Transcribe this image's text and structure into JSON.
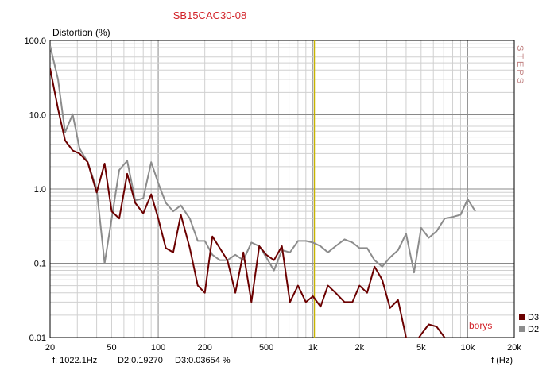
{
  "chart_data": {
    "type": "line",
    "title": "SB15CAC30-08",
    "ylabel": "Distortion (%)",
    "xlabel": "f (Hz)",
    "x_scale": "log",
    "y_scale": "log",
    "xlim": [
      20,
      20000
    ],
    "ylim": [
      0.01,
      100
    ],
    "grid": true,
    "legend_position": "bottom-right",
    "watermark": "borys",
    "side_label": "STEPS",
    "cursor": {
      "x": 1022.1
    },
    "readout": {
      "freq": "f: 1022.1Hz",
      "d2": "D2:0.19270",
      "d3": "D3:0.03654 %"
    },
    "x_ticks": [
      {
        "value": 20,
        "label": "20"
      },
      {
        "value": 50,
        "label": "50"
      },
      {
        "value": 100,
        "label": "100"
      },
      {
        "value": 200,
        "label": "200"
      },
      {
        "value": 500,
        "label": "500"
      },
      {
        "value": 1000,
        "label": "1k"
      },
      {
        "value": 2000,
        "label": "2k"
      },
      {
        "value": 5000,
        "label": "5k"
      },
      {
        "value": 10000,
        "label": "10k"
      },
      {
        "value": 20000,
        "label": "20k"
      }
    ],
    "y_ticks": [
      {
        "value": 100,
        "label": "100.0"
      },
      {
        "value": 10,
        "label": "10.0"
      },
      {
        "value": 1,
        "label": "1.0"
      },
      {
        "value": 0.1,
        "label": "0.1"
      },
      {
        "value": 0.01,
        "label": "0.01"
      }
    ],
    "series": [
      {
        "name": "D2",
        "color": "#8c8c8c",
        "x": [
          20,
          22.5,
          25,
          28,
          31,
          35,
          40,
          45,
          50,
          56,
          63,
          71,
          80,
          90,
          100,
          112,
          125,
          140,
          160,
          180,
          200,
          224,
          250,
          280,
          315,
          355,
          400,
          450,
          500,
          560,
          630,
          710,
          800,
          900,
          1000,
          1120,
          1250,
          1400,
          1600,
          1800,
          2000,
          2240,
          2500,
          2800,
          3150,
          3550,
          4000,
          4500,
          5000,
          5600,
          6300,
          7100,
          8000,
          9000,
          10000,
          11200
        ],
        "y": [
          85,
          30,
          5.8,
          10.2,
          3.5,
          2.3,
          1.0,
          0.1,
          0.4,
          1.8,
          2.4,
          0.7,
          0.75,
          2.3,
          1.2,
          0.65,
          0.5,
          0.6,
          0.4,
          0.2,
          0.2,
          0.13,
          0.11,
          0.11,
          0.13,
          0.11,
          0.19,
          0.17,
          0.12,
          0.08,
          0.15,
          0.14,
          0.2,
          0.2,
          0.19,
          0.17,
          0.14,
          0.17,
          0.21,
          0.19,
          0.16,
          0.16,
          0.11,
          0.09,
          0.12,
          0.15,
          0.25,
          0.075,
          0.3,
          0.22,
          0.27,
          0.4,
          0.42,
          0.45,
          0.73,
          0.5
        ]
      },
      {
        "name": "D3",
        "color": "#6b0000",
        "x": [
          20,
          22.5,
          25,
          28,
          31,
          35,
          40,
          45,
          50,
          56,
          63,
          71,
          80,
          90,
          100,
          112,
          125,
          140,
          160,
          180,
          200,
          224,
          250,
          280,
          315,
          355,
          400,
          450,
          500,
          560,
          630,
          710,
          800,
          900,
          1000,
          1120,
          1250,
          1400,
          1600,
          1800,
          2000,
          2240,
          2500,
          2800,
          3150,
          3550,
          4000,
          4500,
          5000,
          5600,
          6300,
          7100
        ],
        "y": [
          42,
          12,
          4.5,
          3.3,
          3.0,
          2.3,
          0.9,
          2.2,
          0.5,
          0.4,
          1.6,
          0.65,
          0.47,
          0.85,
          0.4,
          0.16,
          0.14,
          0.45,
          0.16,
          0.05,
          0.04,
          0.23,
          0.16,
          0.11,
          0.04,
          0.14,
          0.03,
          0.17,
          0.13,
          0.11,
          0.17,
          0.03,
          0.05,
          0.03,
          0.036,
          0.026,
          0.05,
          0.04,
          0.03,
          0.03,
          0.05,
          0.04,
          0.09,
          0.06,
          0.025,
          0.032,
          0.01,
          0.008,
          0.011,
          0.015,
          0.014,
          0.01
        ]
      }
    ]
  }
}
